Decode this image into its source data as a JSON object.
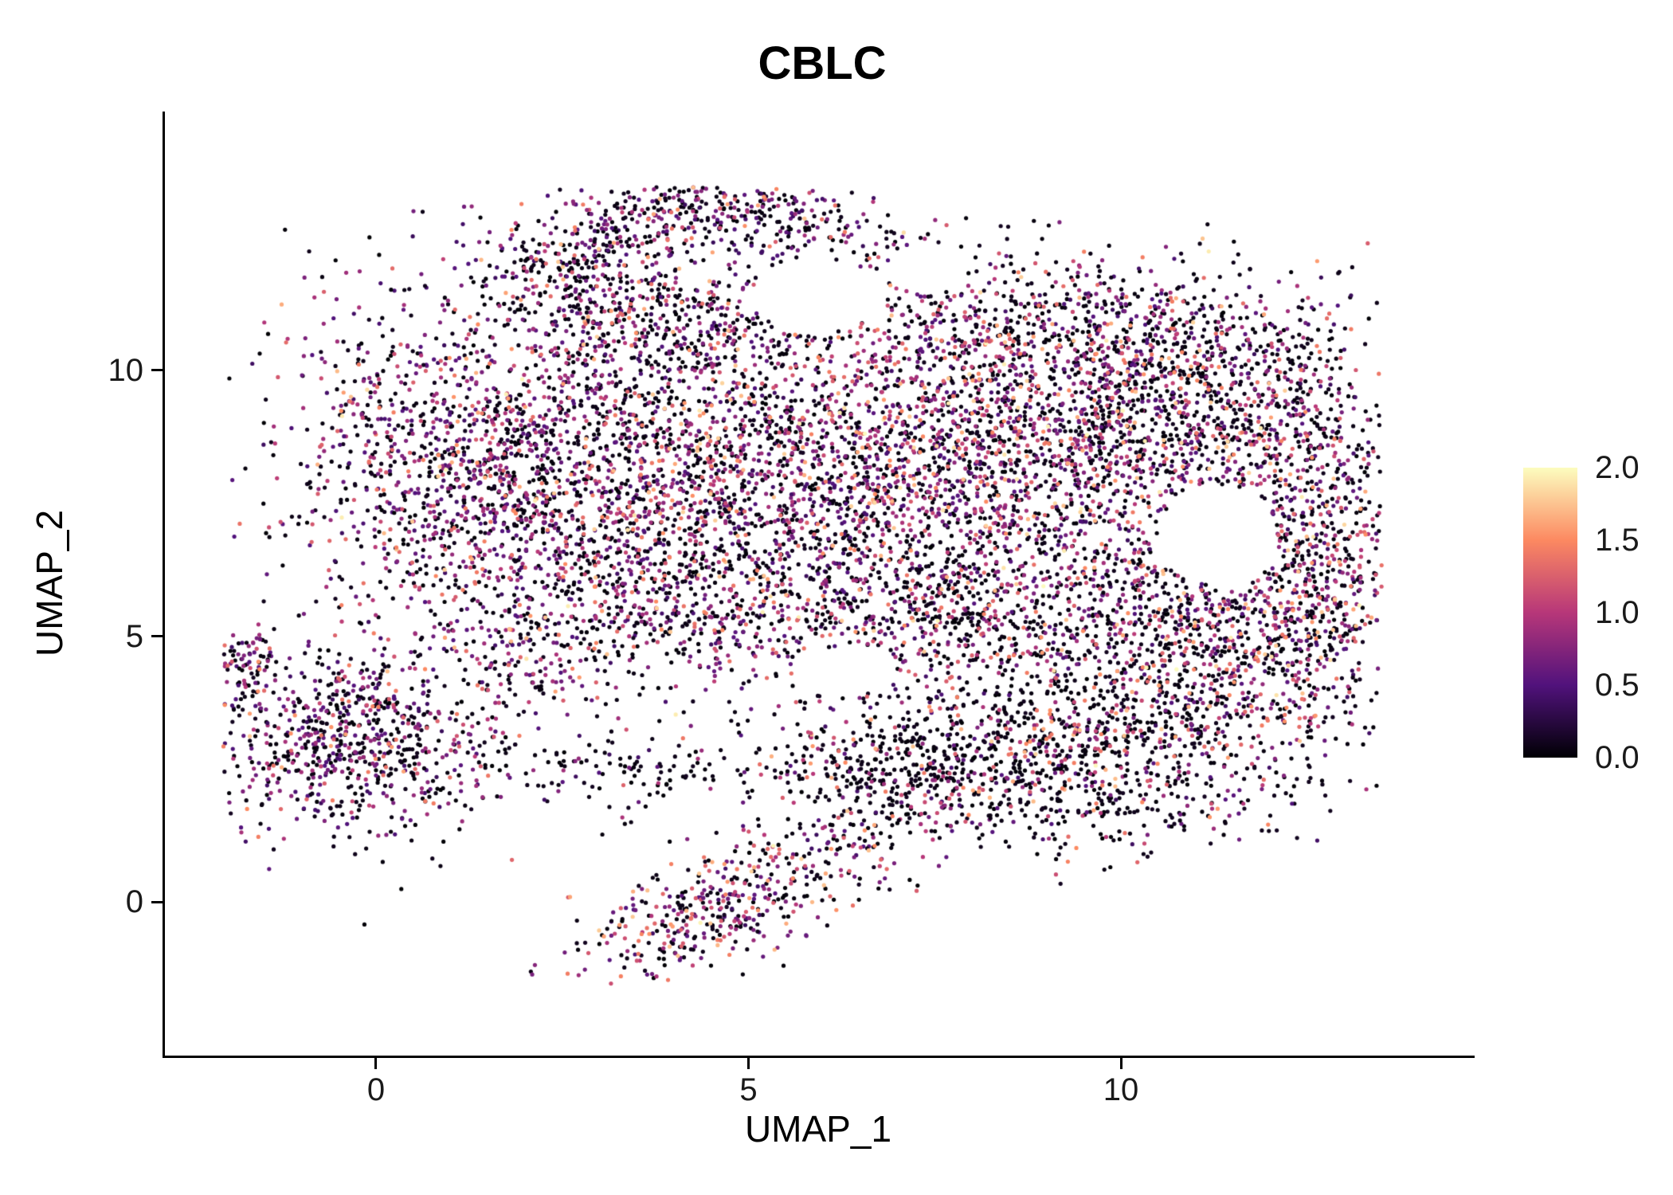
{
  "chart_data": {
    "type": "scatter",
    "title": "CBLC",
    "xlabel": "UMAP_1",
    "ylabel": "UMAP_2",
    "x_tick_values": [
      0,
      5,
      10
    ],
    "x_tick_labels": [
      "0",
      "5",
      "10"
    ],
    "y_tick_values": [
      0,
      5,
      10
    ],
    "y_tick_labels": [
      "0",
      "5",
      "10"
    ],
    "x_range": [
      -2.834,
      14.716
    ],
    "y_range": [
      -2.89,
      14.87
    ],
    "grid": false,
    "legend": {
      "position": "right",
      "ticks": [
        "2.0",
        "1.5",
        "1.0",
        "0.5",
        "0.0"
      ],
      "values": [
        2.0,
        1.5,
        1.0,
        0.5,
        0.0
      ],
      "min": 0.0,
      "max": 2.0
    },
    "colormap": {
      "name": "magma",
      "stops": [
        {
          "value": 0.0,
          "color": "#000004"
        },
        {
          "value": 0.5,
          "color": "#51127c"
        },
        {
          "value": 1.0,
          "color": "#b73779"
        },
        {
          "value": 1.5,
          "color": "#fc8961"
        },
        {
          "value": 2.0,
          "color": "#fcfdbf"
        }
      ]
    },
    "point_radius_px": 2.6,
    "seed": 42,
    "expr_bins": [
      [
        0.0,
        0.12
      ],
      [
        0.35,
        0.95
      ],
      [
        0.95,
        1.45
      ],
      [
        1.45,
        1.8
      ],
      [
        1.8,
        2.0
      ]
    ],
    "extent": {
      "x": [
        -2.05,
        13.5
      ],
      "y": [
        -1.55,
        13.45
      ]
    },
    "clusters": [
      {
        "name": "main-left",
        "n": 1600,
        "cx": 1.6,
        "cy": 8.2,
        "sx": 1.4,
        "sy": 1.6,
        "rot": 0,
        "expr": [
          0.42,
          0.4,
          0.14,
          0.035,
          0.005
        ]
      },
      {
        "name": "main-center",
        "n": 1500,
        "cx": 4.6,
        "cy": 8.3,
        "sx": 1.6,
        "sy": 1.9,
        "rot": 0,
        "expr": [
          0.52,
          0.3,
          0.14,
          0.035,
          0.005
        ]
      },
      {
        "name": "main-right",
        "n": 1800,
        "cx": 7.8,
        "cy": 8.3,
        "sx": 1.6,
        "sy": 1.6,
        "rot": 0,
        "expr": [
          0.44,
          0.34,
          0.16,
          0.05,
          0.01
        ]
      },
      {
        "name": "far-right",
        "n": 1000,
        "cx": 10.6,
        "cy": 9.2,
        "sx": 1.2,
        "sy": 1.2,
        "rot": 0,
        "expr": [
          0.55,
          0.27,
          0.13,
          0.04,
          0.01
        ]
      },
      {
        "name": "right-edge-upper",
        "n": 550,
        "cx": 12.4,
        "cy": 8.2,
        "sx": 0.75,
        "sy": 1.5,
        "rot": 0,
        "expr": [
          0.5,
          0.3,
          0.15,
          0.04,
          0.01
        ]
      },
      {
        "name": "top-arc-left",
        "n": 260,
        "cx": 3.4,
        "cy": 12.55,
        "sx": 0.95,
        "sy": 0.45,
        "rot": 0.5,
        "expr": [
          0.55,
          0.31,
          0.11,
          0.03,
          0
        ]
      },
      {
        "name": "top-arc-right",
        "n": 260,
        "cx": 5.4,
        "cy": 12.8,
        "sx": 0.95,
        "sy": 0.4,
        "rot": -0.3,
        "expr": [
          0.55,
          0.31,
          0.11,
          0.03,
          0
        ]
      },
      {
        "name": "top-left-shoulder",
        "n": 240,
        "cx": 2.7,
        "cy": 11.6,
        "sx": 0.75,
        "sy": 0.75,
        "rot": 0,
        "expr": [
          0.52,
          0.34,
          0.11,
          0.03,
          0
        ]
      },
      {
        "name": "top-mid-edge",
        "n": 220,
        "cx": 4.3,
        "cy": 10.9,
        "sx": 1.0,
        "sy": 0.5,
        "rot": 0,
        "expr": [
          0.55,
          0.3,
          0.12,
          0.03,
          0
        ]
      },
      {
        "name": "top-right-band",
        "n": 480,
        "cx": 9.3,
        "cy": 10.8,
        "sx": 1.5,
        "sy": 0.75,
        "rot": 0,
        "expr": [
          0.55,
          0.29,
          0.12,
          0.035,
          0.005
        ]
      },
      {
        "name": "south-mid",
        "n": 650,
        "cx": 5.0,
        "cy": 5.6,
        "sx": 1.8,
        "sy": 0.85,
        "rot": 0,
        "expr": [
          0.55,
          0.29,
          0.12,
          0.035,
          0.005
        ]
      },
      {
        "name": "south-right",
        "n": 700,
        "cx": 9.3,
        "cy": 5.3,
        "sx": 1.5,
        "sy": 0.9,
        "rot": 0,
        "expr": [
          0.55,
          0.26,
          0.13,
          0.05,
          0.01
        ]
      },
      {
        "name": "se-bulge",
        "n": 650,
        "cx": 11.6,
        "cy": 4.7,
        "sx": 1.05,
        "sy": 1.1,
        "rot": 0,
        "expr": [
          0.5,
          0.28,
          0.16,
          0.05,
          0.01
        ]
      },
      {
        "name": "right-edge-lower",
        "n": 230,
        "cx": 12.7,
        "cy": 6.1,
        "sx": 0.5,
        "sy": 0.9,
        "rot": 0,
        "expr": [
          0.5,
          0.3,
          0.15,
          0.05,
          0
        ]
      },
      {
        "name": "bottom-band",
        "n": 1050,
        "cx": 9.0,
        "cy": 2.7,
        "sx": 1.7,
        "sy": 0.85,
        "rot": 0,
        "expr": [
          0.7,
          0.16,
          0.09,
          0.045,
          0.005
        ]
      },
      {
        "name": "bottom-band-west",
        "n": 250,
        "cx": 7.0,
        "cy": 2.3,
        "sx": 0.8,
        "sy": 0.6,
        "rot": 0,
        "expr": [
          0.74,
          0.15,
          0.08,
          0.03,
          0
        ]
      },
      {
        "name": "left-cluster",
        "n": 800,
        "cx": -0.35,
        "cy": 3.05,
        "sx": 1.0,
        "sy": 0.95,
        "rot": 0,
        "expr": [
          0.47,
          0.38,
          0.12,
          0.03,
          0
        ]
      },
      {
        "name": "left-hook",
        "n": 70,
        "cx": -1.75,
        "cy": 4.45,
        "sx": 0.22,
        "sy": 0.35,
        "rot": 0,
        "expr": [
          0.45,
          0.4,
          0.12,
          0.03,
          0
        ]
      },
      {
        "name": "bottom-cluster",
        "n": 430,
        "cx": 4.6,
        "cy": -0.1,
        "sx": 1.05,
        "sy": 0.45,
        "rot": 0.55,
        "expr": [
          0.44,
          0.3,
          0.17,
          0.08,
          0.01
        ]
      },
      {
        "name": "bottom-stragglers",
        "n": 40,
        "cx": 6.4,
        "cy": 0.9,
        "sx": 0.5,
        "sy": 0.3,
        "rot": 0.3,
        "expr": [
          0.5,
          0.3,
          0.15,
          0.05,
          0
        ]
      },
      {
        "name": "connector",
        "n": 150,
        "cx": 3.2,
        "cy": 2.5,
        "sx": 1.3,
        "sy": 0.45,
        "rot": 0,
        "expr": [
          0.8,
          0.14,
          0.05,
          0.01,
          0
        ]
      },
      {
        "name": "neck",
        "n": 120,
        "cx": 2.2,
        "cy": 4.8,
        "sx": 0.6,
        "sy": 0.6,
        "rot": 0,
        "expr": [
          0.6,
          0.3,
          0.08,
          0.02,
          0
        ]
      }
    ],
    "holes": [
      {
        "cx": 11.3,
        "cy": 6.9,
        "rx": 0.8,
        "ry": 0.95
      },
      {
        "cx": 5.9,
        "cy": 11.4,
        "rx": 0.85,
        "ry": 0.7
      },
      {
        "cx": 6.3,
        "cy": 4.35,
        "rx": 0.7,
        "ry": 0.45
      },
      {
        "cx": 7.4,
        "cy": 11.9,
        "rx": 0.55,
        "ry": 0.45
      }
    ]
  }
}
